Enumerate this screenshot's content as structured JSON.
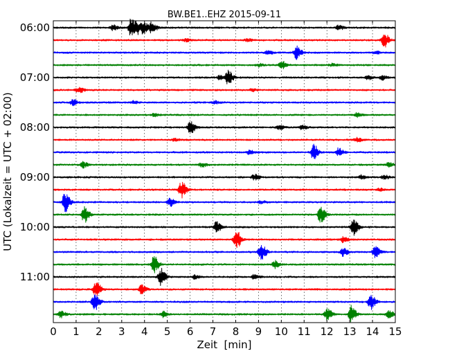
{
  "chart_data": {
    "type": "line",
    "title": "BW.BE1..EHZ 2015-09-11",
    "xlabel": "Zeit  [min]",
    "ylabel": "UTC (Lokalzeit = UTC + 02:00)",
    "xlim": [
      0,
      15
    ],
    "x_ticks": [
      "0",
      "1",
      "2",
      "3",
      "4",
      "5",
      "6",
      "7",
      "8",
      "9",
      "10",
      "11",
      "12",
      "13",
      "14",
      "15"
    ],
    "y_ticks": [
      "06:00",
      "07:00",
      "08:00",
      "09:00",
      "10:00",
      "11:00"
    ],
    "grid": true,
    "trace_interval_min": 15,
    "start_time": "06:00",
    "trace_colors": [
      "#000000",
      "#ff0000",
      "#0000ff",
      "#008000"
    ],
    "traces": [
      {
        "events": [
          {
            "t": 3.4,
            "a": 16
          },
          {
            "t": 3.7,
            "a": 7
          },
          {
            "t": 3.95,
            "a": 7
          },
          {
            "t": 4.3,
            "a": 8
          },
          {
            "t": 2.6,
            "a": 4
          },
          {
            "t": 12.5,
            "a": 3
          }
        ]
      },
      {
        "events": [
          {
            "t": 14.5,
            "a": 11
          },
          {
            "t": 5.8,
            "a": 2
          },
          {
            "t": 8.5,
            "a": 2
          }
        ]
      },
      {
        "events": [
          {
            "t": 10.65,
            "a": 9
          },
          {
            "t": 9.4,
            "a": 3
          },
          {
            "t": 14.1,
            "a": 2
          }
        ]
      },
      {
        "events": [
          {
            "t": 10.0,
            "a": 6
          },
          {
            "t": 9.0,
            "a": 2
          },
          {
            "t": 12.2,
            "a": 2
          }
        ]
      },
      {
        "events": [
          {
            "t": 7.65,
            "a": 10
          },
          {
            "t": 7.3,
            "a": 3
          },
          {
            "t": 13.8,
            "a": 3
          },
          {
            "t": 14.4,
            "a": 3
          }
        ]
      },
      {
        "events": [
          {
            "t": 1.1,
            "a": 4
          },
          {
            "t": 8.7,
            "a": 2
          }
        ]
      },
      {
        "events": [
          {
            "t": 0.85,
            "a": 4
          },
          {
            "t": 3.5,
            "a": 2
          },
          {
            "t": 7.1,
            "a": 2
          }
        ]
      },
      {
        "events": [
          {
            "t": 13.3,
            "a": 3
          },
          {
            "t": 4.4,
            "a": 2
          }
        ]
      },
      {
        "events": [
          {
            "t": 6.0,
            "a": 9
          },
          {
            "t": 9.9,
            "a": 3
          },
          {
            "t": 10.9,
            "a": 3
          }
        ]
      },
      {
        "events": [
          {
            "t": 13.3,
            "a": 3
          },
          {
            "t": 5.3,
            "a": 2
          }
        ]
      },
      {
        "events": [
          {
            "t": 11.4,
            "a": 11
          },
          {
            "t": 12.5,
            "a": 6
          },
          {
            "t": 8.6,
            "a": 3
          }
        ]
      },
      {
        "events": [
          {
            "t": 1.3,
            "a": 4
          },
          {
            "t": 6.5,
            "a": 3
          },
          {
            "t": 14.7,
            "a": 3
          }
        ]
      },
      {
        "events": [
          {
            "t": 8.8,
            "a": 4
          },
          {
            "t": 13.5,
            "a": 3
          },
          {
            "t": 14.5,
            "a": 3
          }
        ]
      },
      {
        "events": [
          {
            "t": 5.6,
            "a": 13
          },
          {
            "t": 14.3,
            "a": 2
          }
        ]
      },
      {
        "events": [
          {
            "t": 0.5,
            "a": 14
          },
          {
            "t": 5.1,
            "a": 6
          },
          {
            "t": 9.1,
            "a": 2
          }
        ]
      },
      {
        "events": [
          {
            "t": 1.35,
            "a": 12
          },
          {
            "t": 11.7,
            "a": 12
          }
        ]
      },
      {
        "events": [
          {
            "t": 7.15,
            "a": 8
          },
          {
            "t": 13.15,
            "a": 12
          }
        ]
      },
      {
        "events": [
          {
            "t": 8.0,
            "a": 14
          },
          {
            "t": 12.7,
            "a": 4
          }
        ]
      },
      {
        "events": [
          {
            "t": 9.1,
            "a": 13
          },
          {
            "t": 12.7,
            "a": 6
          },
          {
            "t": 14.1,
            "a": 8
          }
        ]
      },
      {
        "events": [
          {
            "t": 4.4,
            "a": 12
          },
          {
            "t": 9.7,
            "a": 5
          }
        ]
      },
      {
        "events": [
          {
            "t": 4.7,
            "a": 13
          },
          {
            "t": 6.2,
            "a": 3
          },
          {
            "t": 8.8,
            "a": 3
          }
        ]
      },
      {
        "events": [
          {
            "t": 1.85,
            "a": 12
          },
          {
            "t": 3.85,
            "a": 6
          }
        ]
      },
      {
        "events": [
          {
            "t": 1.8,
            "a": 13
          },
          {
            "t": 13.9,
            "a": 11
          }
        ]
      },
      {
        "events": [
          {
            "t": 13.05,
            "a": 13
          },
          {
            "t": 12.0,
            "a": 8
          },
          {
            "t": 14.7,
            "a": 6
          },
          {
            "t": 0.3,
            "a": 5
          },
          {
            "t": 4.8,
            "a": 4
          }
        ]
      }
    ]
  }
}
